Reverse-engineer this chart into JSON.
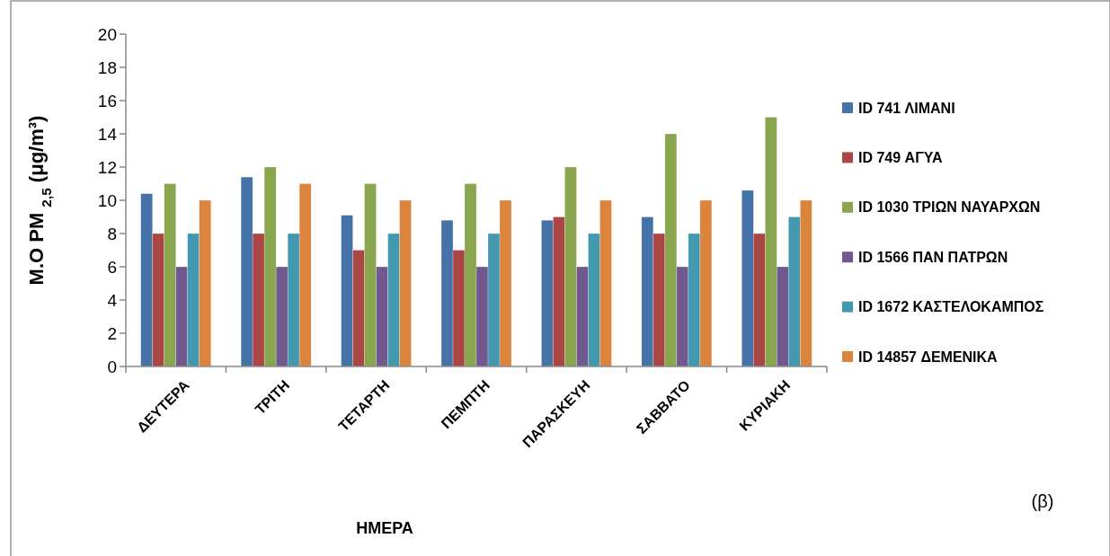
{
  "chart_data": {
    "type": "bar",
    "xlabel": "ΗΜΕΡΑ",
    "ylabel": "M.O PM $_{2,5}$ (μg/m³)",
    "annotations": [
      "(β)"
    ],
    "categories": [
      "ΔΕΥΤΕΡΑ",
      "ΤΡΙΤΗ",
      "ΤΕΤΑΡΤΗ",
      "ΠΕΜΠΤΗ",
      "ΠΑΡΑΣΚΕΥΗ",
      "ΣΑΒΒΑΤΟ",
      "ΚΥΡΙΑΚΗ"
    ],
    "series": [
      {
        "name": "ID 741 ΛΙΜΑΝΙ",
        "color": "#4572a7",
        "values": [
          10.4,
          11.4,
          9.1,
          8.8,
          8.8,
          9.0,
          10.6
        ]
      },
      {
        "name": "ID 749 ΑΓΥΑ",
        "color": "#aa4643",
        "values": [
          8,
          8,
          7,
          7,
          9,
          8,
          8
        ]
      },
      {
        "name": "ID 1030 ΤΡΙΩΝ ΝΑΥΑΡΧΩΝ",
        "color": "#89a54e",
        "values": [
          11,
          12,
          11,
          11,
          12,
          14,
          15
        ]
      },
      {
        "name": "ID 1566 ΠΑΝ ΠΑΤΡΩΝ",
        "color": "#71588f",
        "values": [
          6,
          6,
          6,
          6,
          6,
          6,
          6
        ]
      },
      {
        "name": "ID 1672 ΚΑΣΤΕΛΟΚΑΜΠΟΣ",
        "color": "#4198af",
        "values": [
          8,
          8,
          8,
          8,
          8,
          8,
          9
        ]
      },
      {
        "name": "ID 14857 ΔΕΜΕΝΙΚΑ",
        "color": "#db843d",
        "values": [
          10,
          11,
          10,
          10,
          10,
          10,
          10
        ]
      }
    ],
    "ylim": [
      0,
      20
    ],
    "yticks": [
      0,
      2,
      4,
      6,
      8,
      10,
      12,
      14,
      16,
      18,
      20
    ],
    "grid": false,
    "legend": "right"
  }
}
